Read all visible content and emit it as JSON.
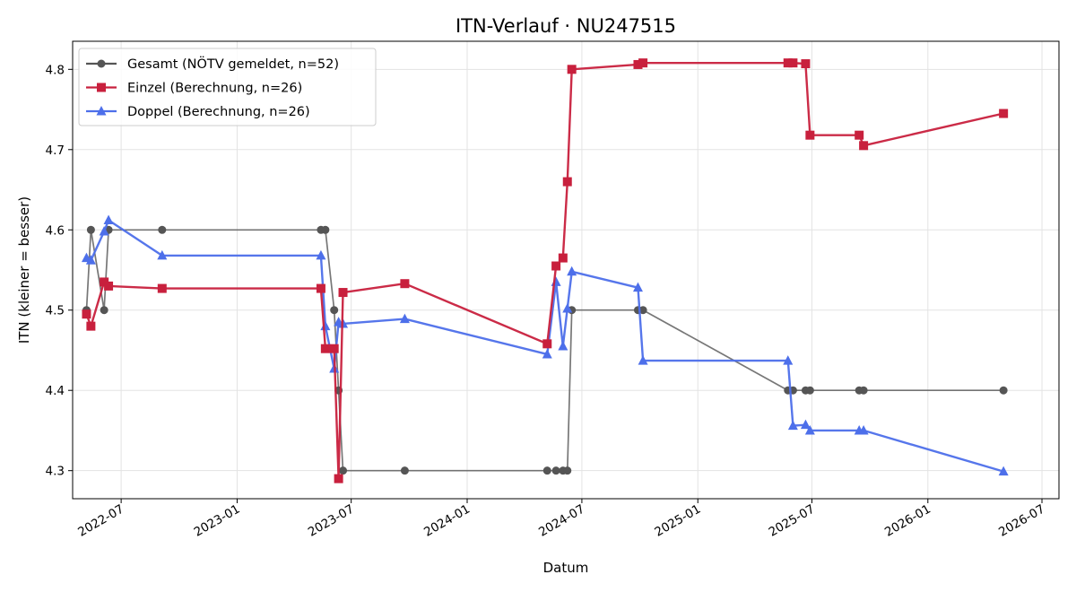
{
  "chart_data": {
    "type": "line",
    "title": "ITN-Verlauf · NU247515",
    "xlabel": "Datum",
    "ylabel": "ITN  (kleiner = besser)",
    "x_axis_type": "date",
    "xlim": [
      "2022-04-15",
      "2026-07-28"
    ],
    "ylim": [
      4.265,
      4.835
    ],
    "x_ticks": [
      "2022-07-01",
      "2023-01-01",
      "2023-07-01",
      "2024-01-01",
      "2024-07-01",
      "2025-01-01",
      "2025-07-01",
      "2026-01-01",
      "2026-07-01"
    ],
    "x_tick_labels": [
      "2022-07",
      "2023-01",
      "2023-07",
      "2024-01",
      "2024-07",
      "2025-01",
      "2025-07",
      "2026-01",
      "2026-07"
    ],
    "y_ticks": [
      4.3,
      4.4,
      4.5,
      4.6,
      4.7,
      4.8
    ],
    "y_tick_labels": [
      "4.3",
      "4.4",
      "4.5",
      "4.6",
      "4.7",
      "4.8"
    ],
    "grid": true,
    "legend_position": "top-left",
    "series": [
      {
        "name": "Gesamt (NÖTV gemeldet, n=52)",
        "color": "#555555",
        "marker": "circle",
        "points": [
          [
            "2022-05-07",
            4.5
          ],
          [
            "2022-05-14",
            4.6
          ],
          [
            "2022-06-04",
            4.5
          ],
          [
            "2022-06-11",
            4.6
          ],
          [
            "2022-09-04",
            4.6
          ],
          [
            "2023-05-14",
            4.6
          ],
          [
            "2023-05-21",
            4.6
          ],
          [
            "2023-06-04",
            4.5
          ],
          [
            "2023-06-11",
            4.4
          ],
          [
            "2023-06-18",
            4.3
          ],
          [
            "2023-09-24",
            4.3
          ],
          [
            "2024-05-07",
            4.3
          ],
          [
            "2024-05-21",
            4.3
          ],
          [
            "2024-06-01",
            4.3
          ],
          [
            "2024-06-08",
            4.3
          ],
          [
            "2024-06-15",
            4.5
          ],
          [
            "2024-09-28",
            4.5
          ],
          [
            "2024-10-06",
            4.5
          ],
          [
            "2025-05-24",
            4.4
          ],
          [
            "2025-06-01",
            4.4
          ],
          [
            "2025-06-21",
            4.4
          ],
          [
            "2025-06-28",
            4.4
          ],
          [
            "2025-09-14",
            4.4
          ],
          [
            "2025-09-21",
            4.4
          ],
          [
            "2026-05-01",
            4.4
          ]
        ]
      },
      {
        "name": "Einzel (Berechnung, n=26)",
        "color": "#c8203d",
        "marker": "square",
        "points": [
          [
            "2022-05-07",
            4.495
          ],
          [
            "2022-05-14",
            4.48
          ],
          [
            "2022-06-04",
            4.535
          ],
          [
            "2022-06-11",
            4.53
          ],
          [
            "2022-09-04",
            4.527
          ],
          [
            "2023-05-14",
            4.527
          ],
          [
            "2023-05-21",
            4.452
          ],
          [
            "2023-06-04",
            4.452
          ],
          [
            "2023-06-11",
            4.29
          ],
          [
            "2023-06-18",
            4.522
          ],
          [
            "2023-09-24",
            4.533
          ],
          [
            "2024-05-07",
            4.458
          ],
          [
            "2024-05-21",
            4.555
          ],
          [
            "2024-06-01",
            4.565
          ],
          [
            "2024-06-08",
            4.66
          ],
          [
            "2024-06-15",
            4.8
          ],
          [
            "2024-09-28",
            4.806
          ],
          [
            "2024-10-06",
            4.808
          ],
          [
            "2025-05-24",
            4.808
          ],
          [
            "2025-06-01",
            4.808
          ],
          [
            "2025-06-21",
            4.807
          ],
          [
            "2025-06-28",
            4.718
          ],
          [
            "2025-09-14",
            4.718
          ],
          [
            "2025-09-21",
            4.705
          ],
          [
            "2026-05-01",
            4.745
          ]
        ]
      },
      {
        "name": "Doppel (Berechnung, n=26)",
        "color": "#4d6fea",
        "marker": "triangle",
        "points": [
          [
            "2022-05-07",
            4.565
          ],
          [
            "2022-05-14",
            4.562
          ],
          [
            "2022-06-04",
            4.598
          ],
          [
            "2022-06-11",
            4.612
          ],
          [
            "2022-09-04",
            4.568
          ],
          [
            "2023-05-14",
            4.568
          ],
          [
            "2023-05-21",
            4.48
          ],
          [
            "2023-06-04",
            4.427
          ],
          [
            "2023-06-11",
            4.485
          ],
          [
            "2023-06-18",
            4.483
          ],
          [
            "2023-09-24",
            4.489
          ],
          [
            "2024-05-07",
            4.445
          ],
          [
            "2024-05-21",
            4.535
          ],
          [
            "2024-06-01",
            4.455
          ],
          [
            "2024-06-08",
            4.502
          ],
          [
            "2024-06-15",
            4.548
          ],
          [
            "2024-09-28",
            4.528
          ],
          [
            "2024-10-06",
            4.437
          ],
          [
            "2025-05-24",
            4.437
          ],
          [
            "2025-06-01",
            4.356
          ],
          [
            "2025-06-21",
            4.357
          ],
          [
            "2025-06-28",
            4.35
          ],
          [
            "2025-09-14",
            4.35
          ],
          [
            "2025-09-21",
            4.35
          ],
          [
            "2026-05-01",
            4.299
          ]
        ]
      }
    ]
  }
}
